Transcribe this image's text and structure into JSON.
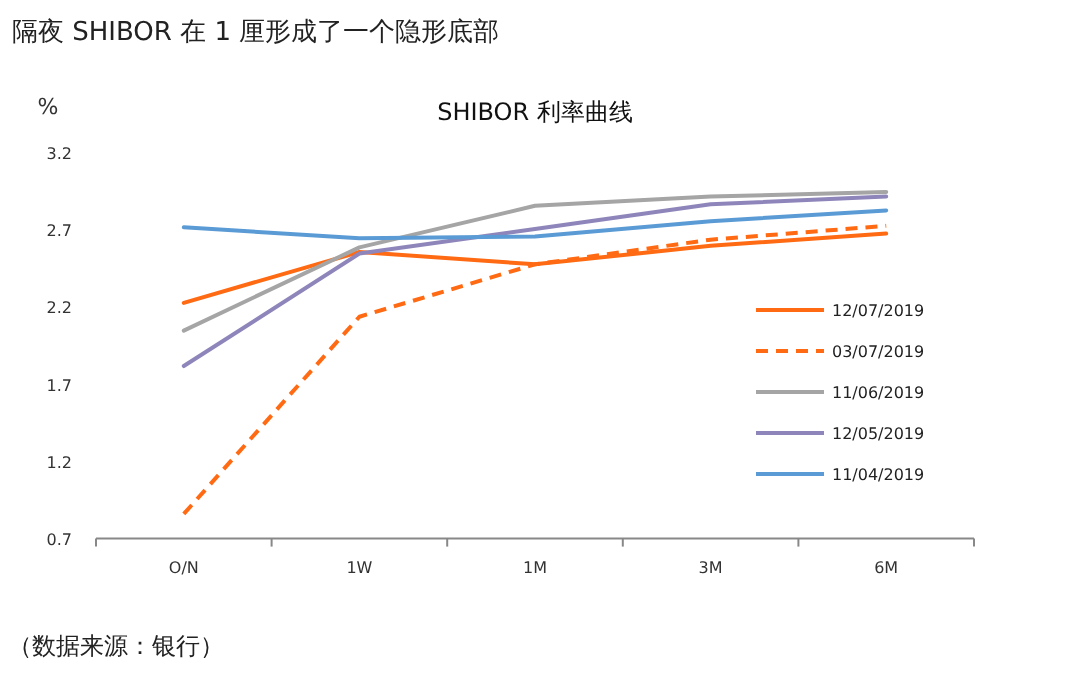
{
  "chart_data": {
    "type": "line",
    "title": "隔夜 SHIBOR 在 1 厘形成了一个隐形底部",
    "subtitle": "SHIBOR 利率曲线",
    "ylabel": "%",
    "categories": [
      "O/N",
      "1W",
      "1M",
      "3M",
      "6M"
    ],
    "series": [
      {
        "name": "12/07/2019",
        "color": "#ff6a13",
        "line_style": "solid",
        "values": [
          2.23,
          2.56,
          2.48,
          2.6,
          2.68
        ]
      },
      {
        "name": "03/07/2019",
        "color": "#ff6a13",
        "line_style": "dashed",
        "values": [
          0.86,
          2.14,
          2.48,
          2.64,
          2.73
        ]
      },
      {
        "name": "11/06/2019",
        "color": "#a5a5a5",
        "line_style": "solid",
        "values": [
          2.05,
          2.59,
          2.86,
          2.92,
          2.95
        ]
      },
      {
        "name": "12/05/2019",
        "color": "#8e86ba",
        "line_style": "solid",
        "values": [
          1.82,
          2.55,
          2.71,
          2.87,
          2.92
        ]
      },
      {
        "name": "11/04/2019",
        "color": "#5b9bd5",
        "line_style": "solid",
        "values": [
          2.72,
          2.65,
          2.66,
          2.76,
          2.83
        ]
      }
    ],
    "ylim": [
      0.7,
      3.2
    ],
    "yticks": [
      0.7,
      1.2,
      1.7,
      2.2,
      2.7,
      3.2
    ],
    "grid": false,
    "legend": "right",
    "marker": "none",
    "annotations": [
      "（数据来源：银行）"
    ]
  }
}
